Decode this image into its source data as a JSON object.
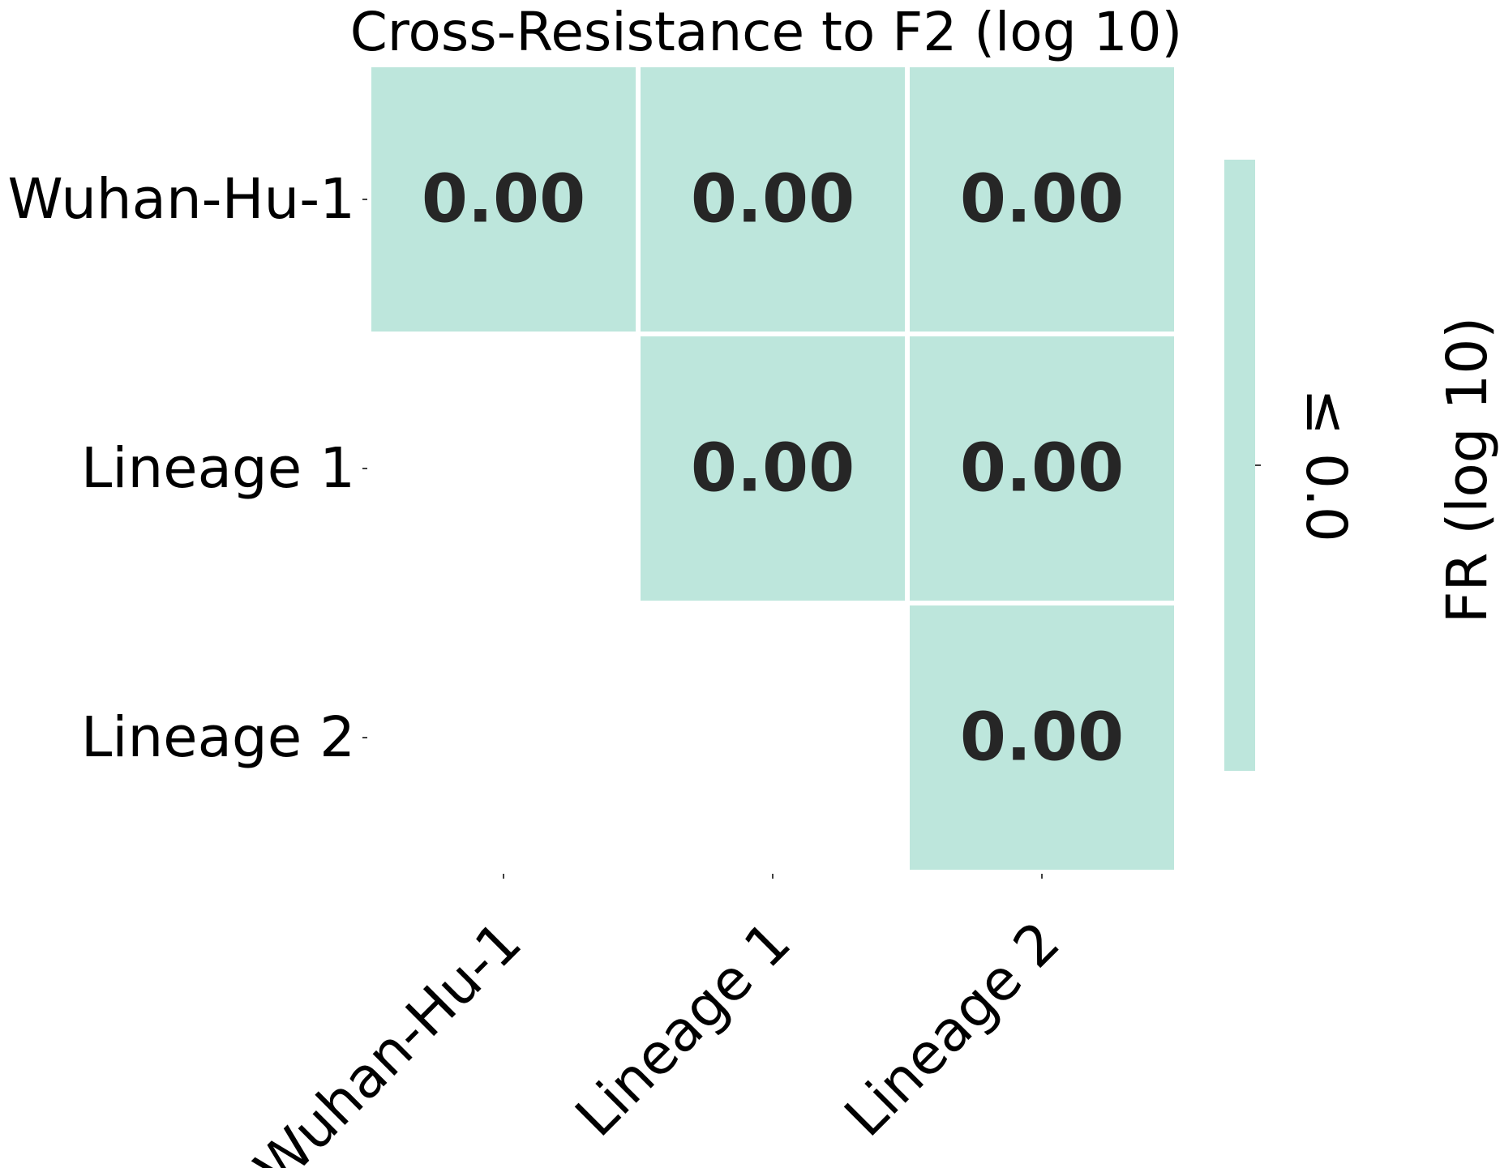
{
  "chart_data": {
    "type": "heatmap",
    "title": "Cross-Resistance to F2 (log 10)",
    "rows": [
      "Wuhan-Hu-1",
      "Lineage 1",
      "Lineage 2"
    ],
    "columns": [
      "Wuhan-Hu-1",
      "Lineage 1",
      "Lineage 2"
    ],
    "values": [
      [
        0.0,
        0.0,
        0.0
      ],
      [
        null,
        0.0,
        0.0
      ],
      [
        null,
        null,
        0.0
      ]
    ],
    "value_labels": [
      [
        "0.00",
        "0.00",
        "0.00"
      ],
      [
        null,
        "0.00",
        "0.00"
      ],
      [
        null,
        null,
        "0.00"
      ]
    ],
    "mask": "lower-triangle",
    "cell_color": "#bde6dc",
    "colorbar": {
      "label": "FR (log 10)",
      "tick_labels": [
        "≤ 0.0"
      ],
      "color": "#bde6dc"
    }
  }
}
